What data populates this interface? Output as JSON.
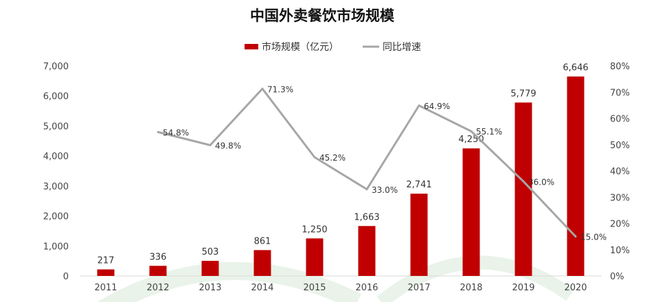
{
  "chart_data": {
    "type": "bar",
    "title": "中国外卖餐饮市场规模",
    "categories": [
      "2011",
      "2012",
      "2013",
      "2014",
      "2015",
      "2016",
      "2017",
      "2018",
      "2019",
      "2020"
    ],
    "series": [
      {
        "name": "市场规模（亿元）",
        "type": "bar",
        "axis": "left",
        "values": [
          217,
          336,
          503,
          861,
          1250,
          1663,
          2741,
          4250,
          5779,
          6646
        ],
        "labels": [
          "217",
          "336",
          "503",
          "861",
          "1,250",
          "1,663",
          "2,741",
          "4,250",
          "5,779",
          "6,646"
        ],
        "color": "#c00000"
      },
      {
        "name": "同比增速",
        "type": "line",
        "axis": "right",
        "values": [
          null,
          54.8,
          49.8,
          71.3,
          45.2,
          33.0,
          64.9,
          55.1,
          36.0,
          15.0
        ],
        "labels": [
          "",
          "54.8%",
          "49.8%",
          "71.3%",
          "45.2%",
          "33.0%",
          "64.9%",
          "55.1%",
          "36.0%",
          "15.0%"
        ],
        "color": "#a6a6a6"
      }
    ],
    "y_left": {
      "min": 0,
      "max": 7000,
      "step": 1000,
      "ticks": [
        "0",
        "1,000",
        "2,000",
        "3,000",
        "4,000",
        "5,000",
        "6,000",
        "7,000"
      ]
    },
    "y_right": {
      "min": 0,
      "max": 80,
      "step": 10,
      "ticks": [
        "0%",
        "10%",
        "20%",
        "30%",
        "40%",
        "50%",
        "60%",
        "70%",
        "80%"
      ]
    },
    "legend_position": "top-center",
    "grid": false
  },
  "colors": {
    "decoration": "#e9f3e9"
  }
}
